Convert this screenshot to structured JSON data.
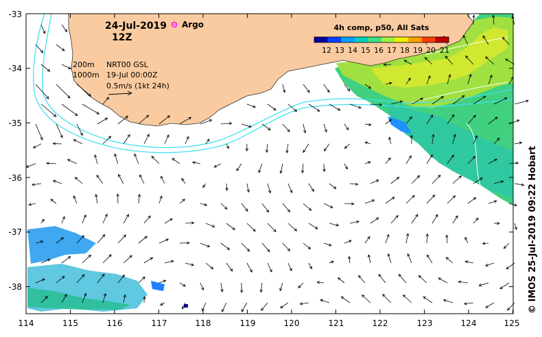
{
  "header": {
    "date": "24-Jul-2019",
    "time": "12Z",
    "argo_label": "Argo"
  },
  "legend": {
    "isobath_1": "200m",
    "isobath_2": "1000m",
    "product": "NRT00 GSL",
    "product_date": "19-Jul 00:00Z",
    "scale_label": "0.5m/s (1kt 24h)"
  },
  "colorbar": {
    "title": "4h comp, p50, All Sats",
    "ticks": [
      "12",
      "13",
      "14",
      "15",
      "16",
      "17",
      "18",
      "19",
      "20",
      "21"
    ],
    "colors": [
      "#0000a0",
      "#0040ff",
      "#00a0ff",
      "#00d0c0",
      "#40e080",
      "#a0f040",
      "#f0f000",
      "#ffa000",
      "#ff4000",
      "#c00000"
    ]
  },
  "credit": "© IMOS 25-Jul-2019 09:22 Hobart",
  "axes": {
    "x_ticks": [
      "114",
      "115",
      "116",
      "117",
      "118",
      "119",
      "120",
      "121",
      "122",
      "123",
      "124",
      "125"
    ],
    "y_ticks": [
      "-33",
      "-34",
      "-35",
      "-36",
      "-37",
      "-38"
    ]
  },
  "colors": {
    "land": "#facba0",
    "isobath": "#40e0f0",
    "argo": "#ff00ff",
    "sst_warm": "#a0e040",
    "sst_mid": "#40d080",
    "sst_cool": "#20b0ff"
  }
}
